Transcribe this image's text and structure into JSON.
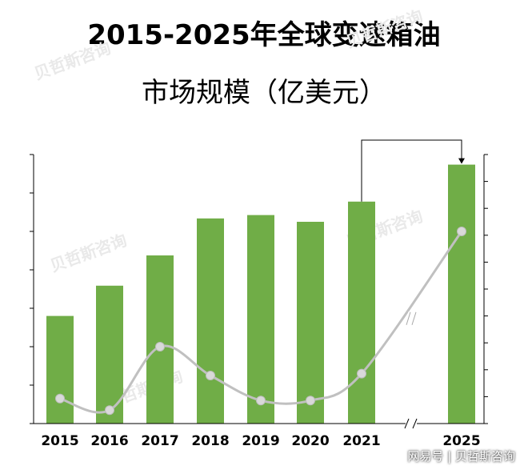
{
  "title": {
    "line1": "2015-2025年全球变速箱油",
    "line2": "市场规模（亿美元）"
  },
  "watermark_text": "贝哲斯咨询",
  "credit": "网易号 | 贝哲斯咨询",
  "colors": {
    "bar": "#70ad47",
    "line": "#c0c0c0",
    "marker": "#d9d9d9",
    "axis": "#000000"
  },
  "chart_data": {
    "type": "bar",
    "categories": [
      "2015",
      "2016",
      "2017",
      "2018",
      "2019",
      "2020",
      "2021",
      "2025"
    ],
    "series": [
      {
        "type": "bar",
        "values": [
          32,
          41,
          50,
          61,
          62,
          60,
          66,
          77
        ]
      },
      {
        "type": "line",
        "values": [
          6.5,
          3.5,
          20,
          12.5,
          6,
          6,
          13,
          50
        ]
      }
    ],
    "left_axis": {
      "ylim": [
        0,
        70
      ]
    },
    "right_axis": {
      "ylim": [
        0,
        80
      ]
    },
    "axis_break_between": [
      "2021",
      "2025"
    ],
    "grid": false,
    "legend": "none",
    "tick_labels_shown": false
  }
}
